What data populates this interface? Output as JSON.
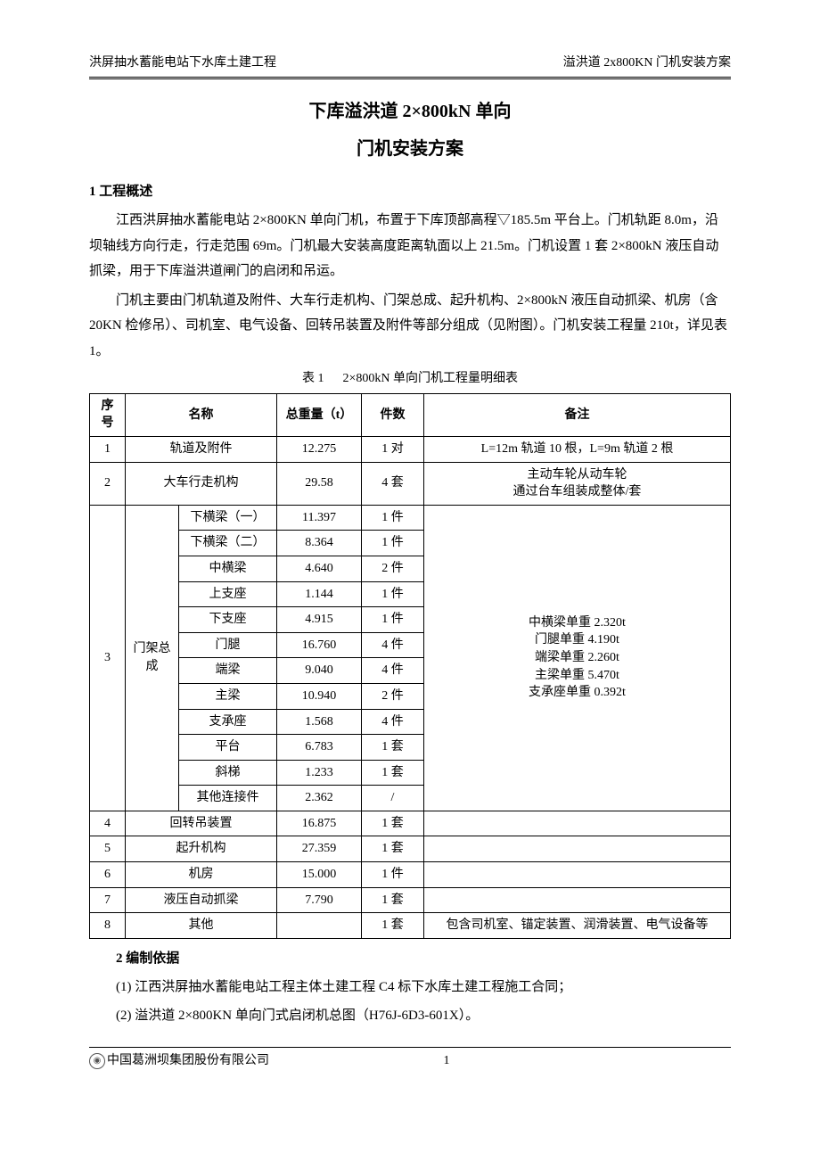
{
  "header": {
    "left": "洪屏抽水蓄能电站下水库土建工程",
    "right": "溢洪道 2x800KN 门机安装方案"
  },
  "title": {
    "line1": "下库溢洪道 2×800kN 单向",
    "line2": "门机安装方案"
  },
  "section1": {
    "heading": "1 工程概述",
    "p1": "江西洪屏抽水蓄能电站 2×800KN 单向门机，布置于下库顶部高程▽185.5m 平台上。门机轨距 8.0m，沿坝轴线方向行走，行走范围 69m。门机最大安装高度距离轨面以上 21.5m。门机设置 1 套 2×800kN 液压自动抓梁，用于下库溢洪道闸门的启闭和吊运。",
    "p2": "门机主要由门机轨道及附件、大车行走机构、门架总成、起升机构、2×800kN 液压自动抓梁、机房（含 20KN 检修吊）、司机室、电气设备、回转吊装置及附件等部分组成（见附图）。门机安装工程量 210t，详见表 1。"
  },
  "table": {
    "caption_label": "表 1",
    "caption_title": "2×800kN 单向门机工程量明细表",
    "headers": {
      "seq": "序号",
      "name": "名称",
      "weight": "总重量（t）",
      "qty": "件数",
      "note": "备注"
    },
    "row1": {
      "seq": "1",
      "name": "轨道及附件",
      "weight": "12.275",
      "qty": "1 对",
      "note": "L=12m 轨道 10 根，L=9m 轨道 2 根"
    },
    "row2": {
      "seq": "2",
      "name": "大车行走机构",
      "weight": "29.58",
      "qty": "4 套",
      "note1": "主动车轮从动车轮",
      "note2": "通过台车组装成整体/套"
    },
    "group3": {
      "seq": "3",
      "group_name": "门架总成",
      "note_l1": "中横梁单重 2.320t",
      "note_l2": "门腿单重 4.190t",
      "note_l3": "端梁单重 2.260t",
      "note_l4": "主梁单重 5.470t",
      "note_l5": "支承座单重 0.392t",
      "items": {
        "i1": {
          "name": "下横梁（一）",
          "weight": "11.397",
          "qty": "1 件"
        },
        "i2": {
          "name": "下横梁（二）",
          "weight": "8.364",
          "qty": "1 件"
        },
        "i3": {
          "name": "中横梁",
          "weight": "4.640",
          "qty": "2 件"
        },
        "i4": {
          "name": "上支座",
          "weight": "1.144",
          "qty": "1 件"
        },
        "i5": {
          "name": "下支座",
          "weight": "4.915",
          "qty": "1 件"
        },
        "i6": {
          "name": "门腿",
          "weight": "16.760",
          "qty": "4 件"
        },
        "i7": {
          "name": "端梁",
          "weight": "9.040",
          "qty": "4 件"
        },
        "i8": {
          "name": "主梁",
          "weight": "10.940",
          "qty": "2 件"
        },
        "i9": {
          "name": "支承座",
          "weight": "1.568",
          "qty": "4 件"
        },
        "i10": {
          "name": "平台",
          "weight": "6.783",
          "qty": "1 套"
        },
        "i11": {
          "name": "斜梯",
          "weight": "1.233",
          "qty": "1 套"
        },
        "i12": {
          "name": "其他连接件",
          "weight": "2.362",
          "qty": "/"
        }
      }
    },
    "row4": {
      "seq": "4",
      "name": "回转吊装置",
      "weight": "16.875",
      "qty": "1 套",
      "note": ""
    },
    "row5": {
      "seq": "5",
      "name": "起升机构",
      "weight": "27.359",
      "qty": "1 套",
      "note": ""
    },
    "row6": {
      "seq": "6",
      "name": "机房",
      "weight": "15.000",
      "qty": "1 件",
      "note": ""
    },
    "row7": {
      "seq": "7",
      "name": "液压自动抓梁",
      "weight": "7.790",
      "qty": "1 套",
      "note": ""
    },
    "row8": {
      "seq": "8",
      "name": "其他",
      "weight": "",
      "qty": "1 套",
      "note": "包含司机室、锚定装置、润滑装置、电气设备等"
    }
  },
  "section2": {
    "heading": "2 编制依据",
    "item1": "(1) 江西洪屏抽水蓄能电站工程主体土建工程 C4 标下水库土建工程施工合同；",
    "item2": "(2) 溢洪道 2×800KN 单向门式启闭机总图（H76J-6D3-601X）。"
  },
  "footer": {
    "company": "中国葛洲坝集团股份有限公司",
    "page": "1"
  }
}
